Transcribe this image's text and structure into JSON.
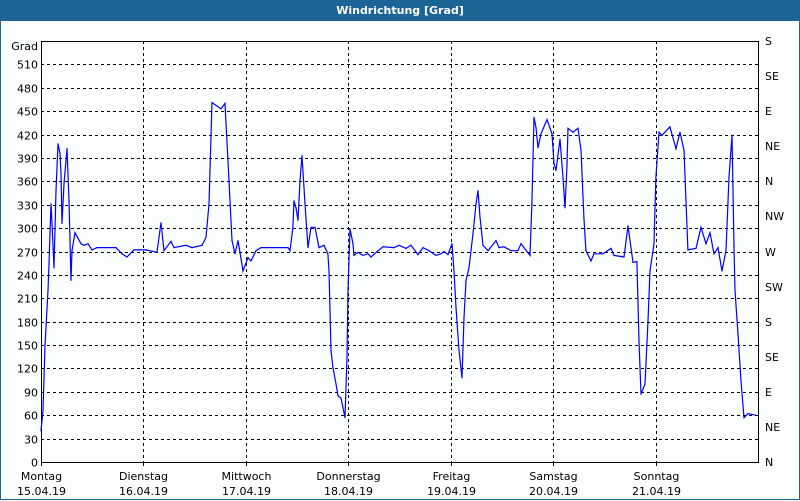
{
  "window": {
    "title": "Windrichtung [Grad]"
  },
  "chart_data": {
    "type": "line",
    "title": "Windrichtung [Grad]",
    "ylabel": "Grad",
    "ylim": [
      0,
      540
    ],
    "xlim": [
      "2019-04-15T00:00",
      "2019-04-22T00:00"
    ],
    "grid": true,
    "line_color": "#0000ff",
    "y_ticks": [
      0,
      30,
      60,
      90,
      120,
      150,
      180,
      210,
      240,
      270,
      300,
      330,
      360,
      390,
      420,
      450,
      480,
      510
    ],
    "y2_ticks": [
      {
        "value": 0,
        "label": "N"
      },
      {
        "value": 45,
        "label": "NE"
      },
      {
        "value": 90,
        "label": "E"
      },
      {
        "value": 135,
        "label": "SE"
      },
      {
        "value": 180,
        "label": "S"
      },
      {
        "value": 225,
        "label": "SW"
      },
      {
        "value": 270,
        "label": "W"
      },
      {
        "value": 315,
        "label": "NW"
      },
      {
        "value": 360,
        "label": "N"
      },
      {
        "value": 405,
        "label": "NE"
      },
      {
        "value": 450,
        "label": "E"
      },
      {
        "value": 495,
        "label": "SE"
      },
      {
        "value": 540,
        "label": "S"
      }
    ],
    "x_ticks": [
      {
        "day": "Montag",
        "date": "15.04.19"
      },
      {
        "day": "Dienstag",
        "date": "16.04.19"
      },
      {
        "day": "Mittwoch",
        "date": "17.04.19"
      },
      {
        "day": "Donnerstag",
        "date": "18.04.19"
      },
      {
        "day": "Freitag",
        "date": "19.04.19"
      },
      {
        "day": "Samstag",
        "date": "20.04.19"
      },
      {
        "day": "Sonntag",
        "date": "21.04.19"
      }
    ],
    "series": [
      {
        "points": [
          [
            "2019-04-15T00:00",
            40
          ],
          [
            "2019-04-15T00:28",
            66
          ],
          [
            "2019-04-15T00:56",
            149
          ],
          [
            "2019-04-15T01:38",
            220
          ],
          [
            "2019-04-15T01:52",
            254
          ],
          [
            "2019-04-15T02:21",
            331
          ],
          [
            "2019-04-15T02:35",
            306
          ],
          [
            "2019-04-15T03:03",
            249
          ],
          [
            "2019-04-15T03:31",
            348
          ],
          [
            "2019-04-15T03:59",
            408
          ],
          [
            "2019-04-15T04:27",
            396
          ],
          [
            "2019-04-15T04:41",
            370
          ],
          [
            "2019-04-15T04:55",
            306
          ],
          [
            "2019-04-15T05:23",
            357
          ],
          [
            "2019-04-15T06:05",
            402
          ],
          [
            "2019-04-15T06:34",
            335
          ],
          [
            "2019-04-15T07:02",
            233
          ],
          [
            "2019-04-15T07:16",
            271
          ],
          [
            "2019-04-15T07:58",
            294
          ],
          [
            "2019-04-15T09:22",
            280
          ],
          [
            "2019-04-15T10:04",
            278
          ],
          [
            "2019-04-15T11:01",
            280
          ],
          [
            "2019-04-15T11:57",
            272
          ],
          [
            "2019-04-15T13:07",
            275
          ],
          [
            "2019-04-15T14:17",
            275
          ],
          [
            "2019-04-15T17:34",
            275
          ],
          [
            "2019-04-15T18:59",
            267
          ],
          [
            "2019-04-15T20:09",
            263
          ],
          [
            "2019-04-15T21:47",
            272
          ],
          [
            "2019-04-16T00:36",
            272
          ],
          [
            "2019-04-16T03:11",
            269
          ],
          [
            "2019-04-16T04:07",
            307
          ],
          [
            "2019-04-16T04:49",
            271
          ],
          [
            "2019-04-16T06:28",
            283
          ],
          [
            "2019-04-16T07:10",
            275
          ],
          [
            "2019-04-16T09:58",
            278
          ],
          [
            "2019-04-16T11:23",
            275
          ],
          [
            "2019-04-16T13:43",
            278
          ],
          [
            "2019-04-16T14:40",
            288
          ],
          [
            "2019-04-16T15:22",
            331
          ],
          [
            "2019-04-16T16:04",
            461
          ],
          [
            "2019-04-16T18:10",
            453
          ],
          [
            "2019-04-16T19:07",
            460
          ],
          [
            "2019-04-16T20:03",
            361
          ],
          [
            "2019-04-16T20:45",
            284
          ],
          [
            "2019-04-16T21:27",
            267
          ],
          [
            "2019-04-16T22:10",
            284
          ],
          [
            "2019-04-16T22:52",
            261
          ],
          [
            "2019-04-16T23:20",
            245
          ],
          [
            "2019-04-17T00:30",
            262
          ],
          [
            "2019-04-17T01:12",
            258
          ],
          [
            "2019-04-17T02:22",
            271
          ],
          [
            "2019-04-17T03:33",
            275
          ],
          [
            "2019-04-17T06:35",
            275
          ],
          [
            "2019-04-17T09:52",
            275
          ],
          [
            "2019-04-17T10:20",
            271
          ],
          [
            "2019-04-17T11:02",
            301
          ],
          [
            "2019-04-17T11:17",
            335
          ],
          [
            "2019-04-17T11:45",
            326
          ],
          [
            "2019-04-17T12:13",
            310
          ],
          [
            "2019-04-17T12:41",
            361
          ],
          [
            "2019-04-17T13:09",
            393
          ],
          [
            "2019-04-17T13:52",
            331
          ],
          [
            "2019-04-17T14:34",
            275
          ],
          [
            "2019-04-17T15:16",
            301
          ],
          [
            "2019-04-17T16:12",
            301
          ],
          [
            "2019-04-17T17:08",
            275
          ],
          [
            "2019-04-17T18:19",
            278
          ],
          [
            "2019-04-17T19:14",
            267
          ],
          [
            "2019-04-17T19:29",
            245
          ],
          [
            "2019-04-17T19:57",
            143
          ],
          [
            "2019-04-17T20:25",
            121
          ],
          [
            "2019-04-17T21:07",
            100
          ],
          [
            "2019-04-17T21:35",
            85
          ],
          [
            "2019-04-17T22:17",
            82
          ],
          [
            "2019-04-17T23:14",
            57
          ],
          [
            "2019-04-17T23:42",
            134
          ],
          [
            "2019-04-17T23:56",
            220
          ],
          [
            "2019-04-18T00:24",
            299
          ],
          [
            "2019-04-18T01:06",
            280
          ],
          [
            "2019-04-18T01:20",
            265
          ],
          [
            "2019-04-18T02:16",
            269
          ],
          [
            "2019-04-18T03:26",
            265
          ],
          [
            "2019-04-18T04:37",
            267
          ],
          [
            "2019-04-18T05:19",
            263
          ],
          [
            "2019-04-18T06:58",
            271
          ],
          [
            "2019-04-18T08:08",
            276
          ],
          [
            "2019-04-18T10:43",
            275
          ],
          [
            "2019-04-18T11:53",
            278
          ],
          [
            "2019-04-18T13:31",
            274
          ],
          [
            "2019-04-18T14:41",
            278
          ],
          [
            "2019-04-18T16:20",
            266
          ],
          [
            "2019-04-18T17:30",
            275
          ],
          [
            "2019-04-18T18:55",
            271
          ],
          [
            "2019-04-18T20:33",
            265
          ],
          [
            "2019-04-18T21:43",
            267
          ],
          [
            "2019-04-18T22:25",
            270
          ],
          [
            "2019-04-18T23:22",
            266
          ],
          [
            "2019-04-19T00:18",
            280
          ],
          [
            "2019-04-19T00:46",
            245
          ],
          [
            "2019-04-19T01:14",
            198
          ],
          [
            "2019-04-19T01:56",
            143
          ],
          [
            "2019-04-19T02:38",
            108
          ],
          [
            "2019-04-19T03:07",
            185
          ],
          [
            "2019-04-19T03:35",
            233
          ],
          [
            "2019-04-19T04:17",
            249
          ],
          [
            "2019-04-19T05:13",
            293
          ],
          [
            "2019-04-19T05:55",
            331
          ],
          [
            "2019-04-19T06:23",
            348
          ],
          [
            "2019-04-19T06:52",
            314
          ],
          [
            "2019-04-19T07:34",
            278
          ],
          [
            "2019-04-19T08:44",
            271
          ],
          [
            "2019-04-19T10:37",
            284
          ],
          [
            "2019-04-19T11:19",
            275
          ],
          [
            "2019-04-19T12:29",
            276
          ],
          [
            "2019-04-19T14:07",
            271
          ],
          [
            "2019-04-19T15:46",
            271
          ],
          [
            "2019-04-19T16:28",
            280
          ],
          [
            "2019-04-19T18:34",
            265
          ],
          [
            "2019-04-19T19:02",
            331
          ],
          [
            "2019-04-19T19:31",
            442
          ],
          [
            "2019-04-19T19:59",
            429
          ],
          [
            "2019-04-19T20:27",
            403
          ],
          [
            "2019-04-19T21:09",
            421
          ],
          [
            "2019-04-19T22:34",
            439
          ],
          [
            "2019-04-19T23:44",
            421
          ],
          [
            "2019-04-20T00:12",
            383
          ],
          [
            "2019-04-20T00:40",
            374
          ],
          [
            "2019-04-20T01:36",
            414
          ],
          [
            "2019-04-20T02:18",
            365
          ],
          [
            "2019-04-20T02:46",
            326
          ],
          [
            "2019-04-20T03:14",
            378
          ],
          [
            "2019-04-20T03:29",
            428
          ],
          [
            "2019-04-20T04:39",
            423
          ],
          [
            "2019-04-20T05:49",
            428
          ],
          [
            "2019-04-20T06:31",
            400
          ],
          [
            "2019-04-20T07:13",
            314
          ],
          [
            "2019-04-20T07:41",
            271
          ],
          [
            "2019-04-20T08:52",
            258
          ],
          [
            "2019-04-20T09:34",
            267
          ],
          [
            "2019-04-20T11:41",
            267
          ],
          [
            "2019-04-20T13:33",
            274
          ],
          [
            "2019-04-20T14:15",
            265
          ],
          [
            "2019-04-20T16:36",
            263
          ],
          [
            "2019-04-20T17:32",
            303
          ],
          [
            "2019-04-20T18:43",
            256
          ],
          [
            "2019-04-20T19:38",
            257
          ],
          [
            "2019-04-20T20:07",
            155
          ],
          [
            "2019-04-20T20:35",
            87
          ],
          [
            "2019-04-20T21:31",
            100
          ],
          [
            "2019-04-20T22:13",
            181
          ],
          [
            "2019-04-20T22:41",
            245
          ],
          [
            "2019-04-20T23:38",
            280
          ],
          [
            "2019-04-21T00:05",
            365
          ],
          [
            "2019-04-21T00:48",
            423
          ],
          [
            "2019-04-21T01:30",
            419
          ],
          [
            "2019-04-21T03:22",
            430
          ],
          [
            "2019-04-21T04:47",
            402
          ],
          [
            "2019-04-21T05:43",
            423
          ],
          [
            "2019-04-21T06:39",
            400
          ],
          [
            "2019-04-21T07:35",
            272
          ],
          [
            "2019-04-21T09:28",
            274
          ],
          [
            "2019-04-21T10:38",
            301
          ],
          [
            "2019-04-21T11:49",
            280
          ],
          [
            "2019-04-21T12:45",
            294
          ],
          [
            "2019-04-21T13:41",
            267
          ],
          [
            "2019-04-21T14:37",
            275
          ],
          [
            "2019-04-21T15:34",
            245
          ],
          [
            "2019-04-21T16:30",
            271
          ],
          [
            "2019-04-21T17:12",
            365
          ],
          [
            "2019-04-21T17:54",
            419
          ],
          [
            "2019-04-21T18:22",
            275
          ],
          [
            "2019-04-21T18:37",
            220
          ],
          [
            "2019-04-21T19:19",
            164
          ],
          [
            "2019-04-21T20:01",
            104
          ],
          [
            "2019-04-21T20:43",
            57
          ],
          [
            "2019-04-21T21:39",
            62
          ],
          [
            "2019-04-21T23:31",
            60
          ]
        ]
      }
    ]
  }
}
